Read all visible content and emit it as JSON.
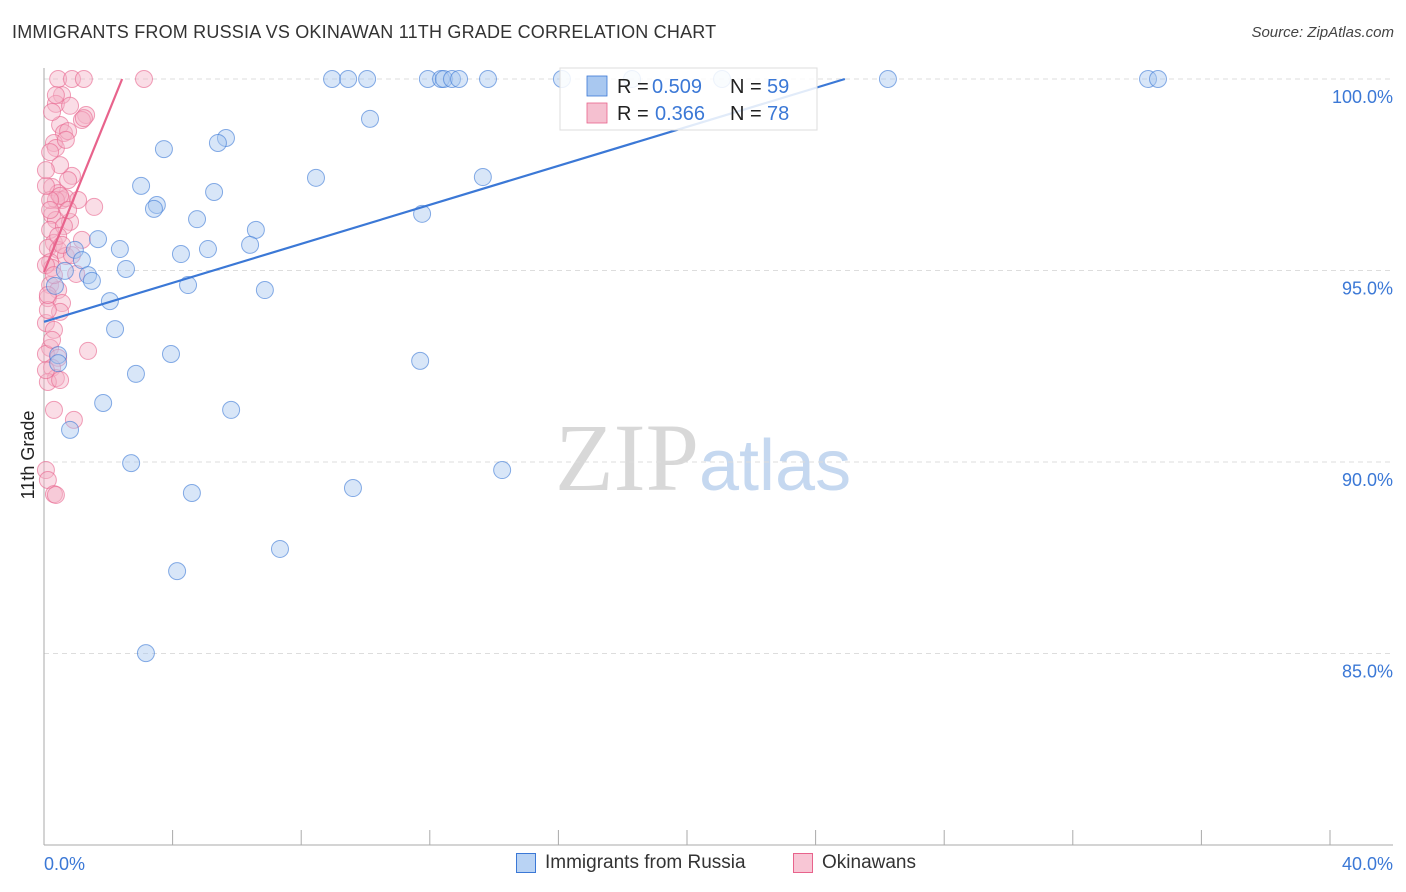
{
  "title": "IMMIGRANTS FROM RUSSIA VS OKINAWAN 11TH GRADE CORRELATION CHART",
  "source": "Source: ZipAtlas.com",
  "watermark": "ZIPatlas",
  "colors": {
    "blue": "#3b78d6",
    "blue_fill": "#a9c8f0",
    "pink": "#e8638c",
    "pink_fill": "#f5b3c7"
  },
  "chart_data": {
    "type": "scatter",
    "title": "IMMIGRANTS FROM RUSSIA VS OKINAWAN 11TH GRADE CORRELATION CHART",
    "xlabel": "",
    "ylabel": "11th Grade",
    "xlim": [
      0,
      40
    ],
    "ylim": [
      80,
      100
    ],
    "x_tick_labels": [
      "0.0%",
      "40.0%"
    ],
    "y_ticks": [
      100,
      95,
      90,
      85
    ],
    "y_tick_labels": [
      "100.0%",
      "95.0%",
      "90.0%",
      "85.0%"
    ],
    "grid": true,
    "legend_stats": [
      {
        "r_label": "R =",
        "r": "0.509",
        "n_label": "N =",
        "n": "59"
      },
      {
        "r_label": "R =",
        "r": "0.366",
        "n_label": "N =",
        "n": "78"
      }
    ],
    "series": [
      {
        "name": "Immigrants from Russia",
        "trend": [
          [
            0,
            93.66
          ],
          [
            24.91,
            100
          ]
        ],
        "points": [
          [
            8.96,
            100
          ],
          [
            9.46,
            100
          ],
          [
            10.05,
            100
          ],
          [
            11.94,
            100
          ],
          [
            12.35,
            100
          ],
          [
            12.44,
            100
          ],
          [
            12.69,
            100
          ],
          [
            12.91,
            100
          ],
          [
            13.81,
            100
          ],
          [
            16.11,
            100
          ],
          [
            18.29,
            100
          ],
          [
            21.09,
            100
          ],
          [
            26.25,
            100
          ],
          [
            34.34,
            100
          ],
          [
            34.65,
            100
          ],
          [
            10.14,
            98.96
          ],
          [
            5.66,
            98.46
          ],
          [
            5.41,
            98.33
          ],
          [
            3.73,
            98.17
          ],
          [
            8.46,
            97.42
          ],
          [
            3.02,
            97.21
          ],
          [
            13.65,
            97.44
          ],
          [
            5.29,
            97.05
          ],
          [
            3.51,
            96.71
          ],
          [
            3.42,
            96.61
          ],
          [
            4.76,
            96.34
          ],
          [
            11.76,
            96.48
          ],
          [
            6.59,
            96.06
          ],
          [
            1.68,
            95.82
          ],
          [
            6.41,
            95.67
          ],
          [
            2.36,
            95.56
          ],
          [
            5.1,
            95.56
          ],
          [
            0.96,
            95.54
          ],
          [
            4.26,
            95.43
          ],
          [
            1.18,
            95.27
          ],
          [
            2.55,
            95.04
          ],
          [
            0.65,
            94.99
          ],
          [
            1.37,
            94.88
          ],
          [
            1.49,
            94.73
          ],
          [
            4.48,
            94.62
          ],
          [
            0.34,
            94.6
          ],
          [
            6.87,
            94.49
          ],
          [
            2.05,
            94.2
          ],
          [
            2.21,
            93.47
          ],
          [
            3.95,
            92.82
          ],
          [
            0.44,
            92.79
          ],
          [
            0.44,
            92.58
          ],
          [
            11.7,
            92.64
          ],
          [
            2.86,
            92.3
          ],
          [
            1.84,
            91.54
          ],
          [
            5.82,
            91.36
          ],
          [
            0.81,
            90.84
          ],
          [
            2.71,
            89.97
          ],
          [
            14.25,
            89.79
          ],
          [
            9.61,
            89.32
          ],
          [
            4.6,
            89.19
          ],
          [
            7.34,
            87.73
          ],
          [
            4.14,
            87.15
          ],
          [
            3.17,
            85.01
          ]
        ]
      },
      {
        "name": "Okinawans",
        "trend": [
          [
            0,
            94.96
          ],
          [
            2.43,
            100
          ]
        ],
        "points": [
          [
            0.44,
            100
          ],
          [
            0.87,
            100
          ],
          [
            1.24,
            100
          ],
          [
            3.11,
            100
          ],
          [
            0.56,
            99.58
          ],
          [
            0.37,
            99.35
          ],
          [
            0.81,
            99.3
          ],
          [
            1.31,
            99.06
          ],
          [
            1.18,
            98.93
          ],
          [
            0.5,
            98.8
          ],
          [
            0.62,
            98.59
          ],
          [
            0.75,
            98.64
          ],
          [
            0.31,
            98.33
          ],
          [
            0.37,
            98.2
          ],
          [
            0.19,
            98.09
          ],
          [
            0.25,
            97.18
          ],
          [
            0.44,
            97.02
          ],
          [
            0.56,
            96.84
          ],
          [
            0.68,
            96.89
          ],
          [
            0.37,
            96.84
          ],
          [
            0.5,
            96.95
          ],
          [
            0.87,
            97.47
          ],
          [
            0.75,
            97.36
          ],
          [
            1.56,
            96.66
          ],
          [
            0.25,
            96.45
          ],
          [
            0.37,
            96.32
          ],
          [
            0.81,
            96.27
          ],
          [
            0.19,
            96.06
          ],
          [
            0.31,
            95.72
          ],
          [
            0.12,
            95.59
          ],
          [
            0.44,
            95.54
          ],
          [
            0.68,
            95.38
          ],
          [
            0.19,
            95.22
          ],
          [
            0.25,
            95.07
          ],
          [
            0.06,
            95.14
          ],
          [
            1.18,
            95.8
          ],
          [
            1.0,
            94.91
          ],
          [
            0.19,
            94.62
          ],
          [
            0.44,
            94.49
          ],
          [
            0.12,
            94.28
          ],
          [
            0.56,
            94.15
          ],
          [
            0.5,
            93.92
          ],
          [
            0.06,
            93.63
          ],
          [
            0.31,
            93.45
          ],
          [
            1.37,
            92.9
          ],
          [
            0.19,
            92.98
          ],
          [
            0.06,
            92.82
          ],
          [
            0.44,
            92.72
          ],
          [
            0.25,
            92.46
          ],
          [
            0.37,
            92.19
          ],
          [
            0.12,
            92.09
          ],
          [
            0.31,
            91.36
          ],
          [
            0.93,
            91.1
          ],
          [
            0.06,
            89.79
          ],
          [
            0.12,
            89.53
          ],
          [
            0.31,
            89.16
          ],
          [
            0.37,
            89.14
          ],
          [
            0.19,
            96.84
          ],
          [
            0.5,
            97.75
          ],
          [
            0.06,
            97.21
          ],
          [
            0.62,
            96.16
          ],
          [
            0.44,
            95.9
          ],
          [
            0.87,
            95.4
          ],
          [
            0.12,
            93.97
          ],
          [
            0.25,
            93.19
          ],
          [
            0.5,
            92.14
          ],
          [
            0.68,
            98.41
          ],
          [
            0.06,
            97.62
          ],
          [
            0.19,
            96.58
          ],
          [
            0.56,
            95.67
          ],
          [
            0.31,
            94.88
          ],
          [
            0.12,
            94.36
          ],
          [
            0.06,
            92.4
          ],
          [
            0.37,
            99.58
          ],
          [
            0.25,
            99.14
          ],
          [
            1.06,
            96.84
          ],
          [
            0.75,
            96.58
          ],
          [
            1.24,
            98.98
          ]
        ]
      }
    ]
  }
}
